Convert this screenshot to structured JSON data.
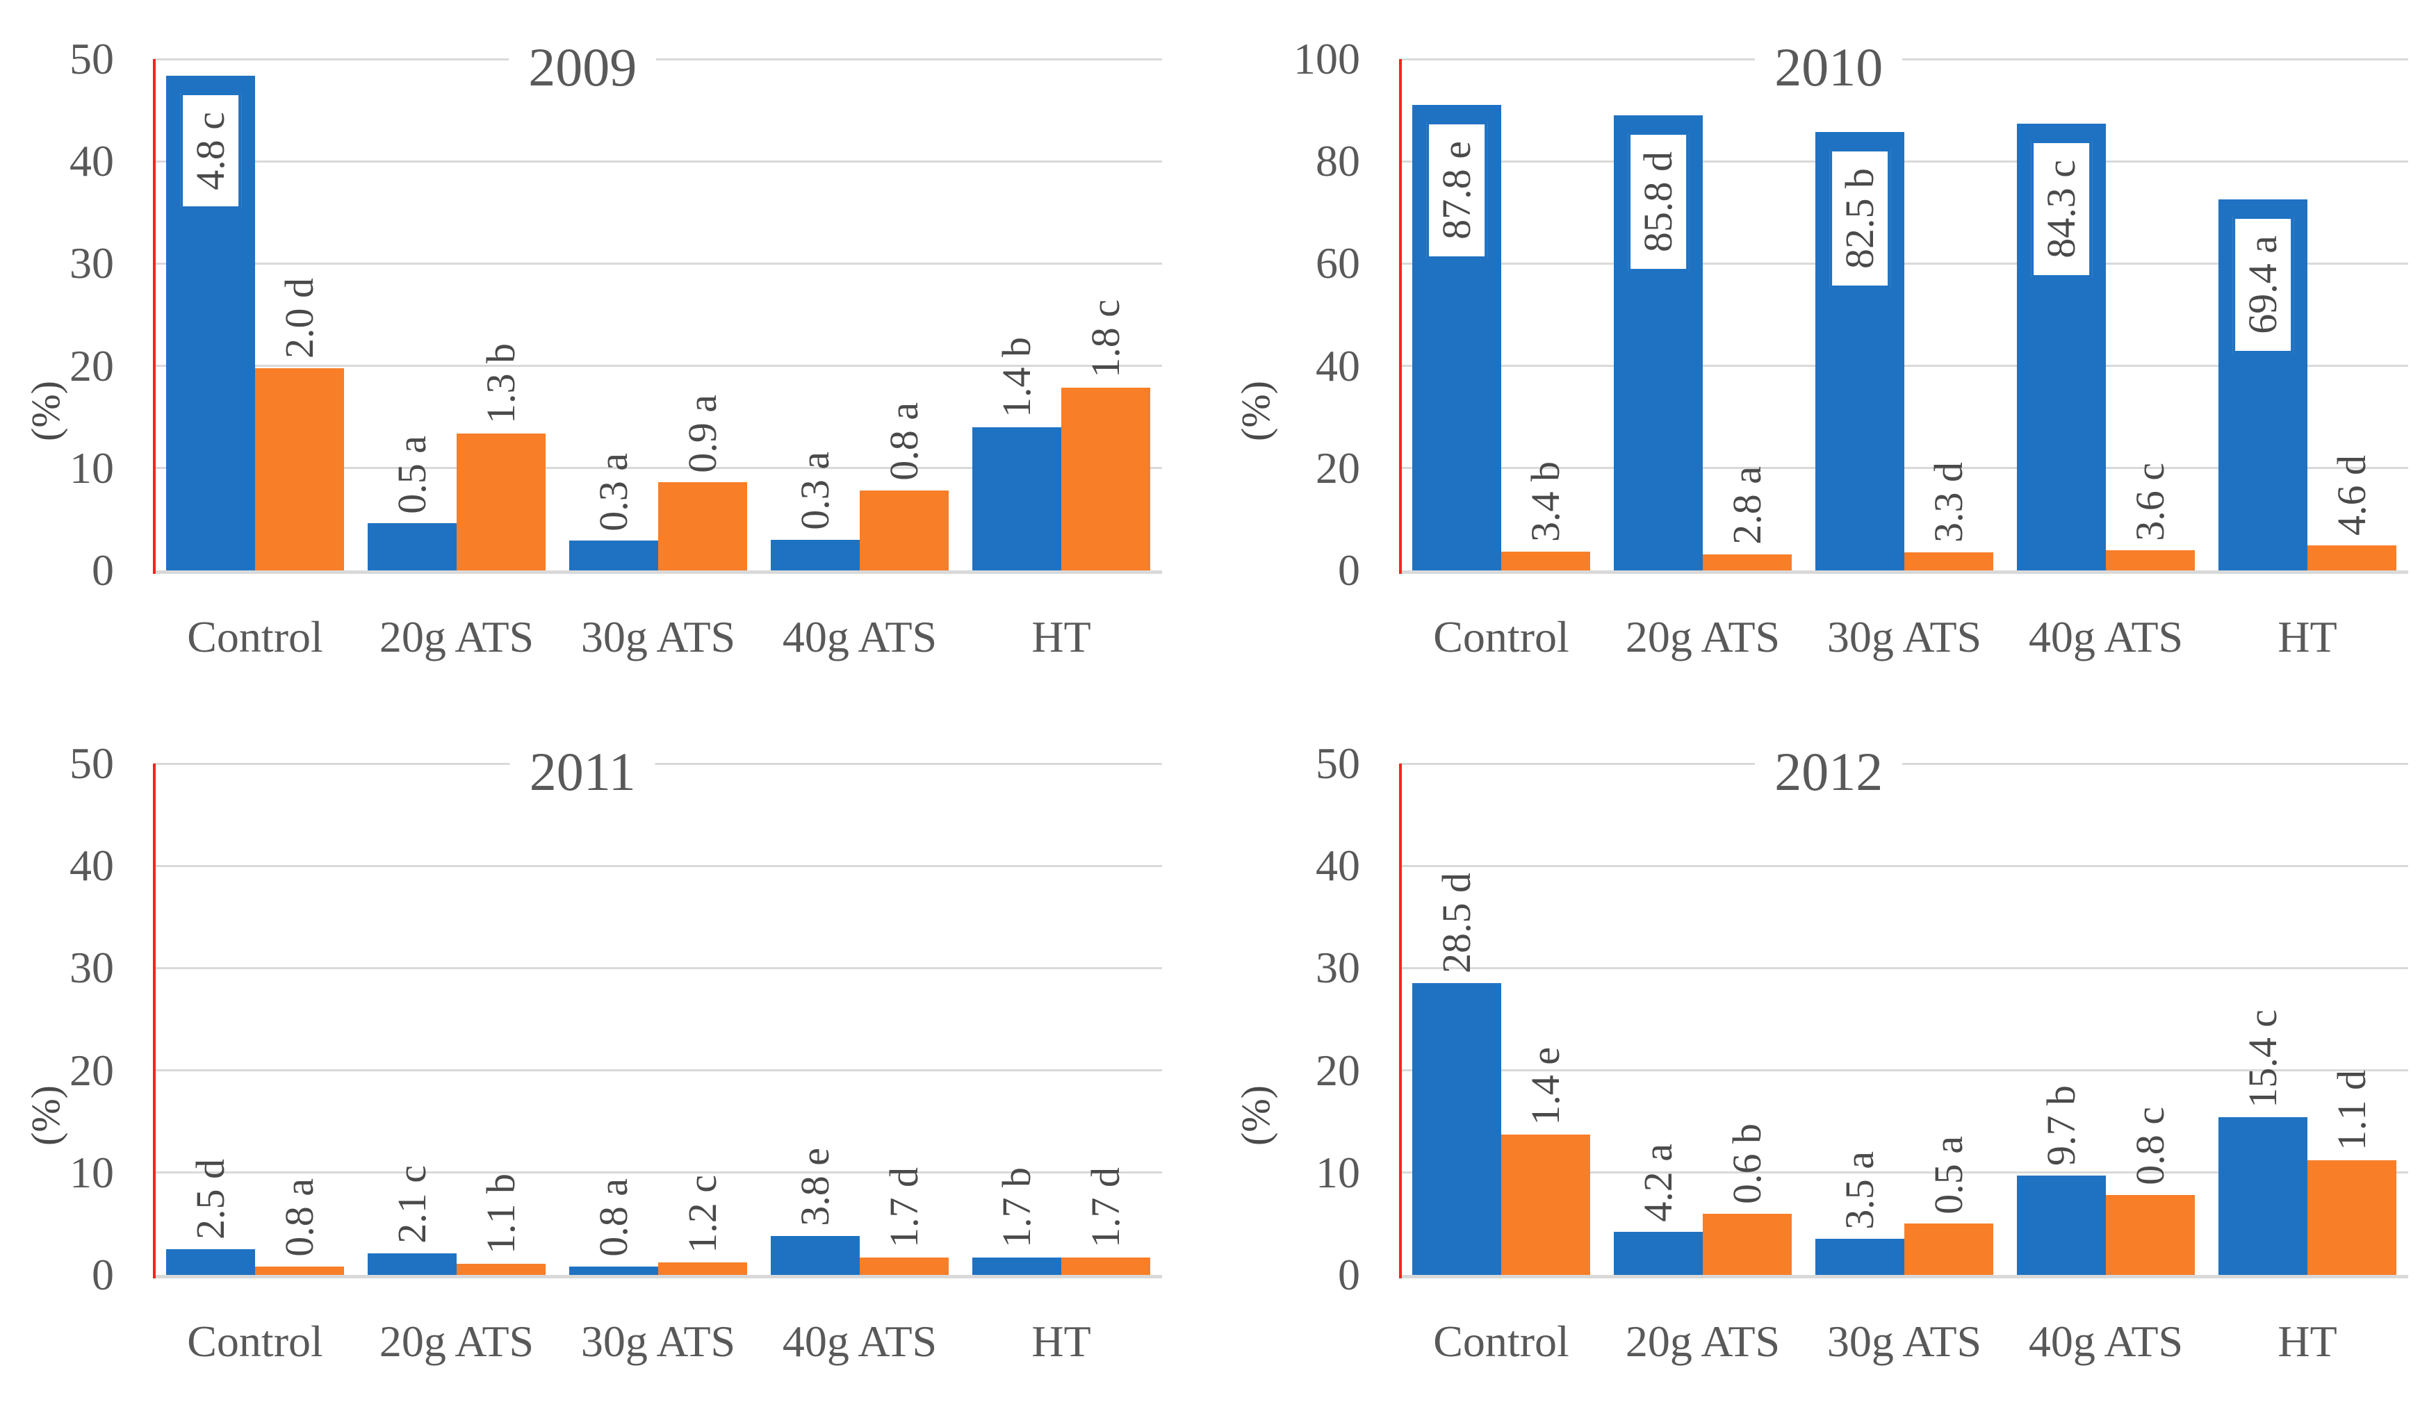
{
  "figure": {
    "y_axis_title": "(%)",
    "colors": {
      "blue_series": "#1f72c2",
      "orange_series": "#f87e28",
      "red_axis_line": "#ff2020",
      "gridline": "#d9d9d9",
      "text": "#595959"
    }
  },
  "chart_data": {
    "type": "bar",
    "grid": true,
    "legend": "none",
    "categories": [
      "Control",
      "20g ATS",
      "30g ATS",
      "40g ATS",
      "HT"
    ],
    "panels": [
      {
        "title": "2009",
        "ylabel": "(%)",
        "ylim": [
          0,
          50
        ],
        "yticks": [
          0,
          10,
          20,
          30,
          40,
          50
        ],
        "series": [
          {
            "name": "blue",
            "values": [
              4.8,
              0.5,
              0.3,
              0.3,
              1.4
            ],
            "letters": [
              "c",
              "a",
              "a",
              "a",
              "b"
            ],
            "labels": [
              "4.8 c",
              "0.5 a",
              "0.3 a",
              "0.3 a",
              "1.4 b"
            ],
            "display_heights": [
              48.4,
              4.6,
              2.9,
              3.0,
              14.0
            ],
            "boxed": [
              true,
              false,
              false,
              false,
              false
            ]
          },
          {
            "name": "orange",
            "values": [
              2.0,
              1.3,
              0.9,
              0.8,
              1.8
            ],
            "letters": [
              "d",
              "b",
              "a",
              "a",
              "c"
            ],
            "labels": [
              "2.0 d",
              "1.3 b",
              "0.9 a",
              "0.8 a",
              "1.8 c"
            ],
            "display_heights": [
              19.8,
              13.4,
              8.6,
              7.8,
              17.9
            ],
            "boxed": [
              false,
              false,
              false,
              false,
              false
            ]
          }
        ]
      },
      {
        "title": "2010",
        "ylabel": "(%)",
        "ylim": [
          0,
          100
        ],
        "yticks": [
          0,
          20,
          40,
          60,
          80,
          100
        ],
        "series": [
          {
            "name": "blue",
            "values": [
              87.8,
              85.8,
              82.5,
              84.3,
              69.4
            ],
            "letters": [
              "e",
              "d",
              "b",
              "c",
              "a"
            ],
            "labels": [
              "87.8 e",
              "85.8 d",
              "82.5 b",
              "84.3 c",
              "69.4 a"
            ],
            "display_heights": [
              91.0,
              89.0,
              85.7,
              87.4,
              72.5
            ],
            "boxed": [
              true,
              true,
              true,
              true,
              true
            ]
          },
          {
            "name": "orange",
            "values": [
              3.4,
              2.8,
              3.3,
              3.6,
              4.6
            ],
            "letters": [
              "b",
              "a",
              "d",
              "c",
              "d"
            ],
            "labels": [
              "3.4 b",
              "2.8 a",
              "3.3 d",
              "3.6 c",
              "4.6 d"
            ],
            "display_heights": [
              3.7,
              3.1,
              3.5,
              3.9,
              4.9
            ],
            "boxed": [
              false,
              false,
              false,
              false,
              false
            ]
          }
        ]
      },
      {
        "title": "2011",
        "ylabel": "(%)",
        "ylim": [
          0,
          50
        ],
        "yticks": [
          0,
          10,
          20,
          30,
          40,
          50
        ],
        "series": [
          {
            "name": "blue",
            "values": [
              2.5,
              2.1,
              0.8,
              3.8,
              1.7
            ],
            "letters": [
              "d",
              "c",
              "a",
              "e",
              "b"
            ],
            "labels": [
              "2.5 d",
              "2.1 c",
              "0.8 a",
              "3.8 e",
              "1.7 b"
            ],
            "display_heights": [
              2.5,
              2.1,
              0.8,
              3.8,
              1.7
            ],
            "boxed": [
              false,
              false,
              false,
              false,
              false
            ]
          },
          {
            "name": "orange",
            "values": [
              0.8,
              1.1,
              1.2,
              1.7,
              1.7
            ],
            "letters": [
              "a",
              "b",
              "c",
              "d",
              "d"
            ],
            "labels": [
              "0.8 a",
              "1.1 b",
              "1.2 c",
              "1.7 d",
              "1.7 d"
            ],
            "display_heights": [
              0.8,
              1.1,
              1.2,
              1.7,
              1.7
            ],
            "boxed": [
              false,
              false,
              false,
              false,
              false
            ]
          }
        ]
      },
      {
        "title": "2012",
        "ylabel": "(%)",
        "ylim": [
          0,
          50
        ],
        "yticks": [
          0,
          10,
          20,
          30,
          40,
          50
        ],
        "series": [
          {
            "name": "blue",
            "values": [
              28.5,
              4.2,
              3.5,
              9.7,
              15.4
            ],
            "letters": [
              "d",
              "a",
              "a",
              "b",
              "c"
            ],
            "labels": [
              "28.5 d",
              "4.2 a",
              "3.5 a",
              "9.7 b",
              "15.4 c"
            ],
            "display_heights": [
              28.5,
              4.2,
              3.5,
              9.7,
              15.4
            ],
            "boxed": [
              false,
              false,
              false,
              false,
              false
            ]
          },
          {
            "name": "orange",
            "values": [
              1.4,
              0.6,
              0.5,
              0.8,
              1.1
            ],
            "letters": [
              "e",
              "b",
              "a",
              "c",
              "d"
            ],
            "labels": [
              "1.4 e",
              "0.6 b",
              "0.5 a",
              "0.8 c",
              "1.1 d"
            ],
            "display_heights": [
              13.7,
              6.0,
              5.0,
              7.8,
              11.2
            ],
            "boxed": [
              false,
              false,
              false,
              false,
              false
            ]
          }
        ]
      }
    ]
  }
}
